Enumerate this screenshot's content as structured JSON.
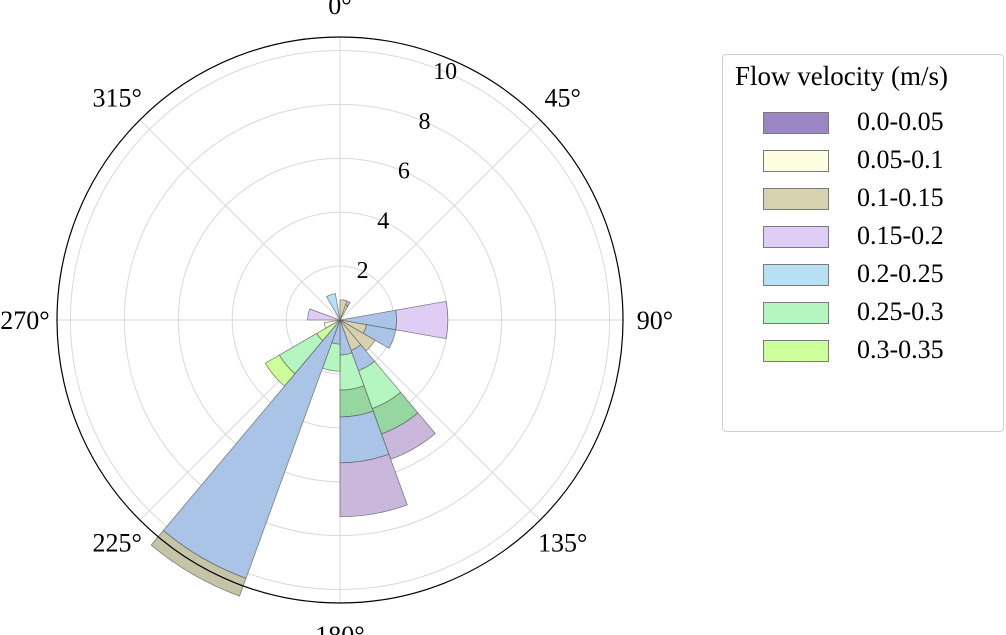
{
  "chart_data": {
    "type": "polar-stacked-bar",
    "title": "",
    "radial_ticks": [
      "2",
      "4",
      "6",
      "8",
      "10"
    ],
    "radial_tick_values": [
      2,
      4,
      6,
      8,
      10
    ],
    "rmax": 10.5,
    "direction_ticks": [
      {
        "angle": 0,
        "label": "0°"
      },
      {
        "angle": 45,
        "label": "45°"
      },
      {
        "angle": 90,
        "label": "90°"
      },
      {
        "angle": 135,
        "label": "135°"
      },
      {
        "angle": 180,
        "label": "180°"
      },
      {
        "angle": 225,
        "label": "225°"
      },
      {
        "angle": 270,
        "label": "270°"
      },
      {
        "angle": 315,
        "label": "315°"
      }
    ],
    "bin_width_deg": 20,
    "legend_title": "Flow velocity (m/s)",
    "series": [
      {
        "name": "0.0-0.05",
        "color": "#9b85c4"
      },
      {
        "name": "0.05-0.1",
        "color": "#fdfde0"
      },
      {
        "name": "0.1-0.15",
        "color": "#d6d2b0"
      },
      {
        "name": "0.15-0.2",
        "color": "#e0cdf5"
      },
      {
        "name": "0.2-0.25",
        "color": "#b8e0f5"
      },
      {
        "name": "0.25-0.3",
        "color": "#b5f5c0"
      },
      {
        "name": "0.3-0.35",
        "color": "#ccff99"
      }
    ],
    "bars": [
      {
        "direction": 20,
        "segments": [
          {
            "from": 0,
            "to": 0.6,
            "color": "#d6d2b0"
          },
          {
            "from": 0.6,
            "to": 0.75,
            "color": "#c9b8dc"
          }
        ]
      },
      {
        "direction": 10,
        "segments": [
          {
            "from": 0,
            "to": 0.75,
            "color": "#d6d2b0"
          }
        ]
      },
      {
        "direction": 340,
        "segments": [
          {
            "from": 0,
            "to": 1.0,
            "color": "#b8e0f5"
          }
        ]
      },
      {
        "direction": 90,
        "segments": [
          {
            "from": 0,
            "to": 2.1,
            "color": "#a9c4e6"
          },
          {
            "from": 2.1,
            "to": 4.0,
            "color": "#e0cdf5"
          }
        ]
      },
      {
        "direction": 110,
        "segments": [
          {
            "from": 0,
            "to": 1.0,
            "color": "#d6d2b0"
          },
          {
            "from": 1.0,
            "to": 2.1,
            "color": "#a9c4e6"
          }
        ]
      },
      {
        "direction": 130,
        "segments": [
          {
            "from": 0,
            "to": 1.5,
            "color": "#d6d2b0"
          }
        ]
      },
      {
        "direction": 150,
        "segments": [
          {
            "from": 0,
            "to": 1.2,
            "color": "#d6d2b0"
          },
          {
            "from": 1.2,
            "to": 2.0,
            "color": "#a9c4e6"
          },
          {
            "from": 2.0,
            "to": 3.5,
            "color": "#b5f5c0"
          },
          {
            "from": 3.5,
            "to": 4.5,
            "color": "#96d6a0"
          },
          {
            "from": 4.5,
            "to": 5.5,
            "color": "#c9b8dc"
          }
        ]
      },
      {
        "direction": 170,
        "segments": [
          {
            "from": 0,
            "to": 1.3,
            "color": "#a9c4e6"
          },
          {
            "from": 1.3,
            "to": 2.6,
            "color": "#b5f5c0"
          },
          {
            "from": 2.6,
            "to": 3.6,
            "color": "#96d6a0"
          },
          {
            "from": 3.6,
            "to": 5.3,
            "color": "#a9c4e6"
          },
          {
            "from": 5.3,
            "to": 7.3,
            "color": "#c9b8dc"
          }
        ]
      },
      {
        "direction": 190,
        "segments": [
          {
            "from": 0,
            "to": 0.9,
            "color": "#a9c4e6"
          },
          {
            "from": 0.9,
            "to": 1.9,
            "color": "#b5f5c0"
          }
        ]
      },
      {
        "direction": 210,
        "segments": [
          {
            "from": 0,
            "to": 10.2,
            "color": "#a9c4e6"
          },
          {
            "from": 10.2,
            "to": 10.9,
            "color": "#c6c4a6"
          }
        ]
      },
      {
        "direction": 230,
        "segments": [
          {
            "from": 0,
            "to": 1.0,
            "color": "#ccff99"
          },
          {
            "from": 1.0,
            "to": 2.6,
            "color": "#b5f5c0"
          },
          {
            "from": 2.6,
            "to": 3.2,
            "color": "#ccff99"
          }
        ]
      },
      {
        "direction": 250,
        "segments": [
          {
            "from": 0,
            "to": 0.6,
            "color": "#fdfde0"
          }
        ]
      },
      {
        "direction": 280,
        "segments": [
          {
            "from": 0,
            "to": 1.2,
            "color": "#e0cdf5"
          }
        ]
      }
    ]
  }
}
